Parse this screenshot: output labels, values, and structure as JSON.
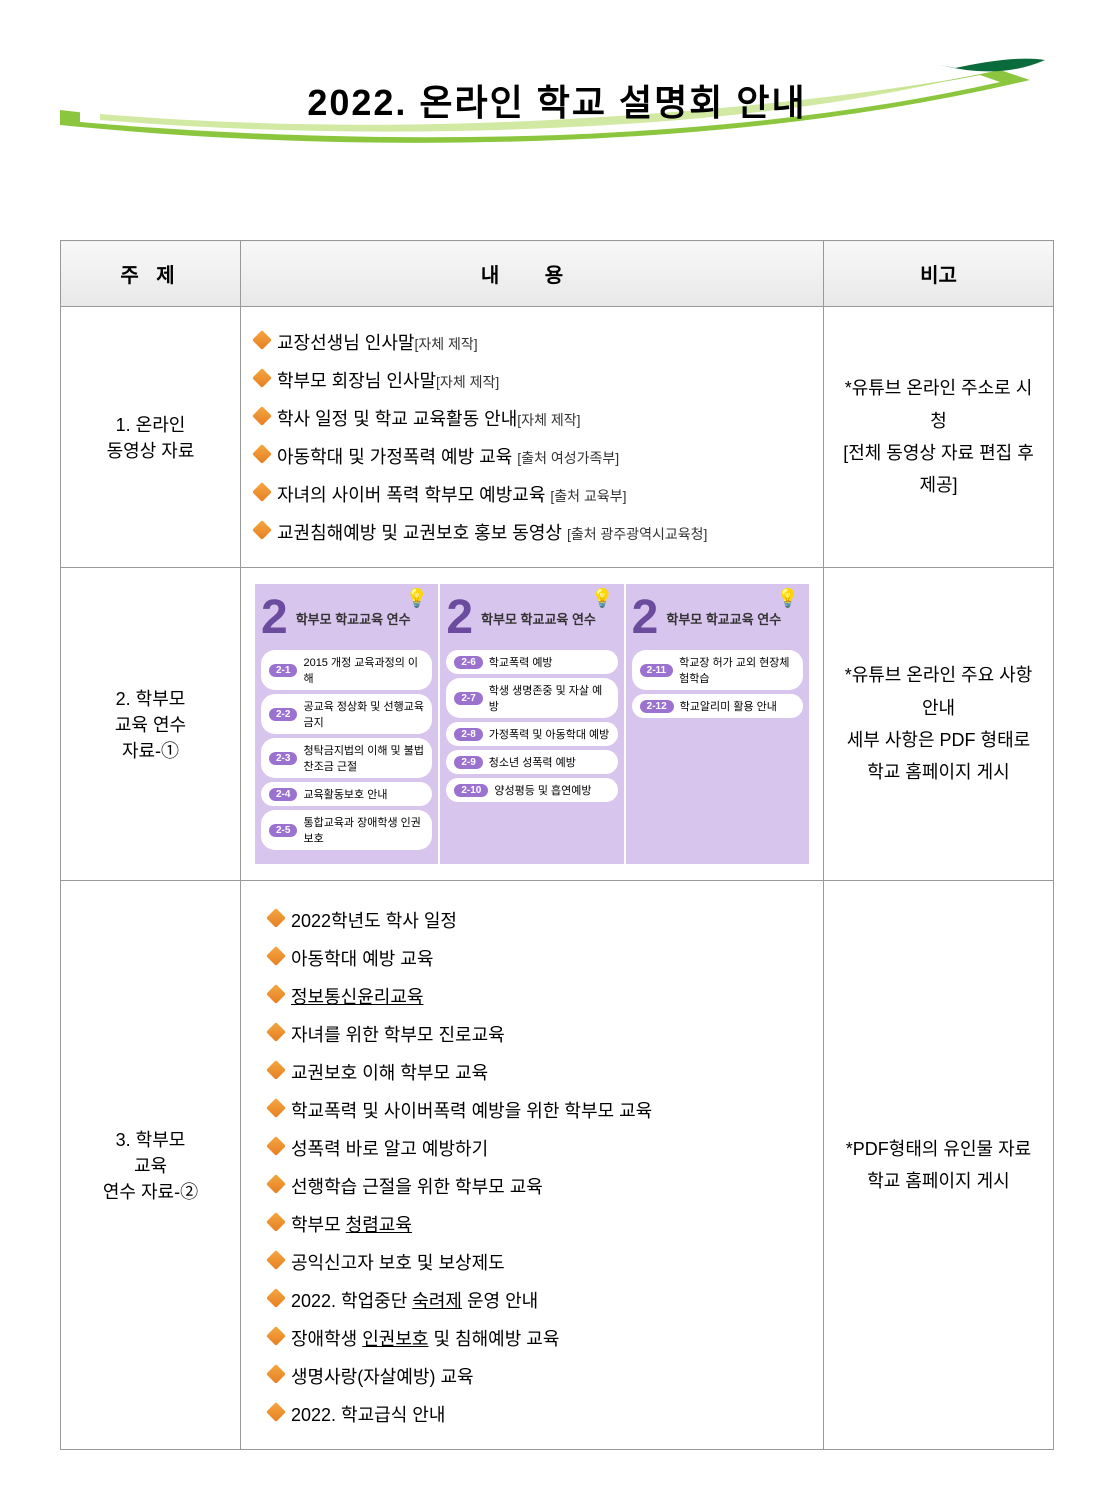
{
  "title": "2022. 온라인 학교 설명회 안내",
  "banner_color_outer": "#8cc63f",
  "banner_color_inner": "#bde07a",
  "table": {
    "headers": {
      "subject": "주 제",
      "content": "내      용",
      "note": "비고"
    }
  },
  "rows": [
    {
      "subject_line1": "1. 온라인",
      "subject_line2": "동영상 자료",
      "items": [
        {
          "text": "교장선생님 인사말",
          "source": "[자체 제작]"
        },
        {
          "text": "학부모 회장님 인사말",
          "source": "[자체 제작]"
        },
        {
          "text": "학사 일정 및 학교 교육활동 안내",
          "source": "[자체 제작]"
        },
        {
          "text": "아동학대 및 가정폭력 예방 교육 ",
          "source": "[출처 여성가족부]"
        },
        {
          "text": "자녀의 사이버 폭력 학부모 예방교육 ",
          "source": "[출처 교육부]"
        },
        {
          "text": "교권침해예방 및 교권보호 홍보 동영상 ",
          "source": "[출처 광주광역시교육청]"
        }
      ],
      "note_line1": "*유튜브 온라인 주소로 시청",
      "note_line2": "[전체 동영상 자료 편집 후 제공]"
    },
    {
      "subject_line1": "2. 학부모",
      "subject_line2": "교육 연수",
      "subject_line3": "자료-①",
      "cards": {
        "big_number": "2",
        "card_title": "학부모 학교교육 연수",
        "card1_items": [
          {
            "tag": "2-1",
            "text": "2015 개정 교육과정의 이해"
          },
          {
            "tag": "2-2",
            "text": "공교육 정상화 및 선행교육 금지"
          },
          {
            "tag": "2-3",
            "text": "청탁금지법의 이해 및 불법찬조금 근절"
          },
          {
            "tag": "2-4",
            "text": "교육활동보호 안내"
          },
          {
            "tag": "2-5",
            "text": "통합교육과 장애학생 인권보호"
          }
        ],
        "card2_items": [
          {
            "tag": "2-6",
            "text": "학교폭력 예방"
          },
          {
            "tag": "2-7",
            "text": "학생 생명존중 및 자살 예방"
          },
          {
            "tag": "2-8",
            "text": "가정폭력 및 아동학대 예방"
          },
          {
            "tag": "2-9",
            "text": "청소년 성폭력 예방"
          },
          {
            "tag": "2-10",
            "text": "양성평등 및 흡연예방"
          }
        ],
        "card3_items": [
          {
            "tag": "2-11",
            "text": "학교장 허가 교외 현장체험학습"
          },
          {
            "tag": "2-12",
            "text": "학교알리미 활용 안내"
          }
        ]
      },
      "note_line1": "*유튜브 온라인 주요 사항 안내",
      "note_line2": "세부 사항은 PDF 형태로 학교 홈페이지 게시"
    },
    {
      "subject_line1": "3. 학부모",
      "subject_line2": "교육",
      "subject_line3": "연수 자료-②",
      "items": [
        {
          "text": "2022학년도 학사 일정"
        },
        {
          "text": "아동학대 예방 교육"
        },
        {
          "text": "정보통신윤리교육",
          "underline": true
        },
        {
          "text": "자녀를 위한 학부모 진로교육"
        },
        {
          "text": "교권보호 이해 학부모 교육"
        },
        {
          "text": "학교폭력 및 사이버폭력 예방을 위한 학부모 교육"
        },
        {
          "text": "성폭력 바로 알고 예방하기"
        },
        {
          "text": "선행학습 근절을 위한 학부모 교육"
        },
        {
          "text": "학부모 청렴교육",
          "underline_part": "청렴교육"
        },
        {
          "text": "공익신고자 보호 및 보상제도"
        },
        {
          "text_prefix": "2022. 학업중단 ",
          "underline_word": "숙려제",
          "text_suffix": " 운영 안내"
        },
        {
          "text_prefix": "장애학생 ",
          "underline_word": "인권보호",
          "text_suffix": " 및 침해예방 교육"
        },
        {
          "text": "생명사랑(자살예방) 교육"
        },
        {
          "text": "2022. 학교급식 안내"
        }
      ],
      "note_line1": "*PDF형태의 유인물 자료 학교 홈페이지 게시"
    }
  ]
}
